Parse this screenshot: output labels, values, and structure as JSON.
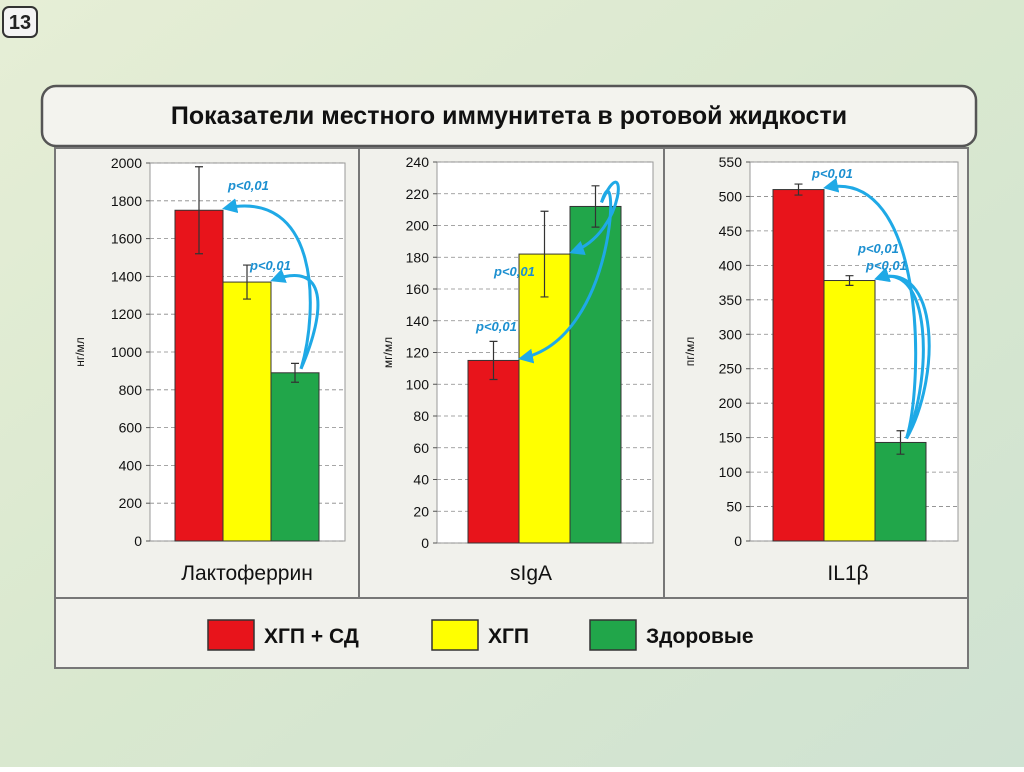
{
  "slide_number": "13",
  "title": "Показатели местного иммунитета в ротовой жидкости",
  "legend": [
    {
      "name": "ХГП + СД",
      "color": "#e8141b"
    },
    {
      "name": "ХГП",
      "color": "#ffff00"
    },
    {
      "name": "Здоровые",
      "color": "#21a64a"
    }
  ],
  "chart_data": [
    {
      "type": "bar",
      "xlabel": "Лактоферрин",
      "ylabel": "нг/мл",
      "values": [
        1750,
        1370,
        890
      ],
      "errors": [
        230,
        90,
        50
      ],
      "ylim": [
        0,
        2000
      ],
      "yticks": [
        0,
        200,
        400,
        600,
        800,
        1000,
        1200,
        1400,
        1600,
        1800,
        2000
      ],
      "grid": true,
      "annotations": [
        "p<0,01",
        "p<0,01"
      ]
    },
    {
      "type": "bar",
      "xlabel": "sIgA",
      "ylabel": "мг/мл",
      "values": [
        115,
        182,
        212
      ],
      "errors": [
        12,
        27,
        13
      ],
      "ylim": [
        0,
        240
      ],
      "yticks": [
        0,
        20,
        40,
        60,
        80,
        100,
        120,
        140,
        160,
        180,
        200,
        220,
        240
      ],
      "grid": true,
      "annotations": [
        "p<0,01",
        "p<0,01"
      ]
    },
    {
      "type": "bar",
      "xlabel": "IL1β",
      "ylabel": "пг/мл",
      "values": [
        510,
        378,
        143
      ],
      "errors": [
        8,
        7,
        17
      ],
      "ylim": [
        0,
        550
      ],
      "yticks": [
        0,
        50,
        100,
        150,
        200,
        250,
        300,
        350,
        400,
        450,
        500,
        550
      ],
      "grid": true,
      "annotations": [
        "p<0,01",
        "p<0,01",
        "p<0,01"
      ]
    }
  ]
}
